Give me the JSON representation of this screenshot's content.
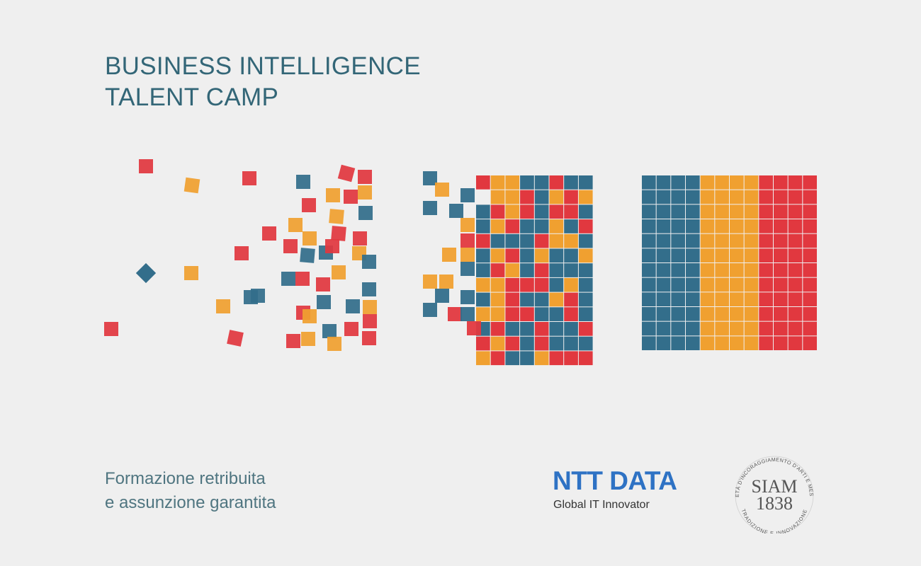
{
  "title": {
    "line1": "BUSINESS INTELLIGENCE",
    "line2": "TALENT CAMP"
  },
  "subtitle": {
    "line1": "Formazione retribuita",
    "line2": "e assunzione garantita"
  },
  "ntt": {
    "logo_text": "NTT DATA",
    "tagline": "Global IT Innovator"
  },
  "siam": {
    "name": "SIAM",
    "year": "1838",
    "arc_top": "SOCIETÀ D'INCORAGGIAMENTO D'ARTI E MESTIERI",
    "arc_bottom": "TRADIZIONE E INNOVAZIONE"
  },
  "colors": {
    "background": "#efefef",
    "blue": "#336e8b",
    "orange": "#f0a030",
    "red": "#e1383f",
    "title": "#336677",
    "ntt_blue": "#2e72c4"
  }
}
